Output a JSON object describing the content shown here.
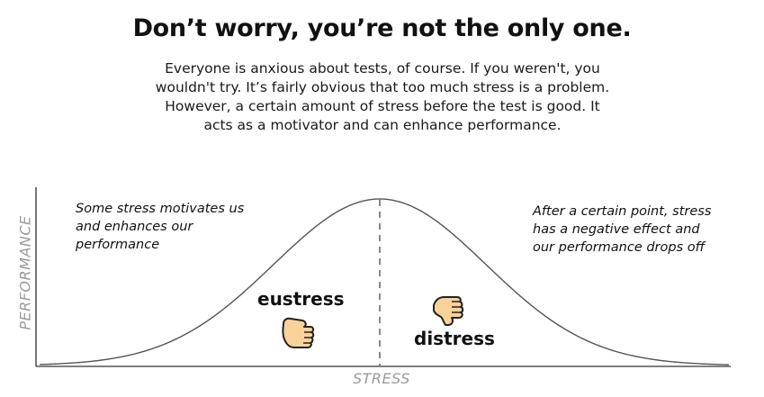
{
  "title": "Don’t worry, you’re not the only one.",
  "intro_lines": [
    "Everyone is anxious about tests, of course. If you weren't, you",
    "wouldn't try. It’s fairly obvious that too much stress is a problem.",
    "However, a certain amount of stress before the test is good. It",
    "acts as a motivator and can enhance performance."
  ],
  "diagram": {
    "x_axis_label": "STRESS",
    "y_axis_label": "PERFORMANCE",
    "left_note_lines": [
      "Some stress motivates us",
      "and enhances our",
      "performance"
    ],
    "right_note_lines": [
      "After a certain point, stress",
      "has a negative effect and",
      "our performance drops off"
    ],
    "left_zone_label": "eustress",
    "right_zone_label": "distress",
    "left_icon": "thumbs-up-icon",
    "right_icon": "thumbs-down-icon",
    "thumb_color": "#f9d29a",
    "curve_color": "#555555",
    "axis_color": "#555555"
  }
}
